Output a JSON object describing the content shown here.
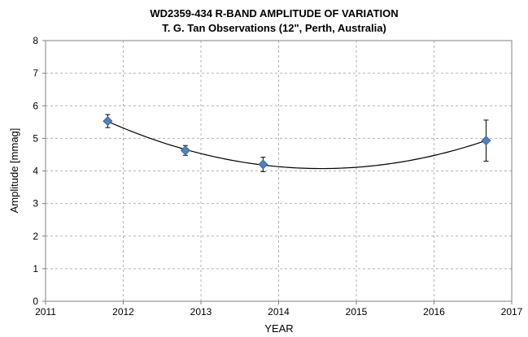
{
  "chart_data": {
    "type": "scatter",
    "title": "WD2359-434 R-BAND AMPLITUDE OF VARIATION",
    "subtitle": "T. G. Tan Observations (12\", Perth, Australia)",
    "xlabel": "YEAR",
    "ylabel": "Amplitude [mmag]",
    "xlim": [
      2011,
      2017
    ],
    "ylim": [
      0,
      8
    ],
    "x_ticks": [
      "2011",
      "2012",
      "2013",
      "2014",
      "2015",
      "2016",
      "2017"
    ],
    "y_ticks": [
      "0",
      "1",
      "2",
      "3",
      "4",
      "5",
      "6",
      "7",
      "8"
    ],
    "grid": true,
    "legend": "none",
    "marker": "diamond",
    "marker_color": "#4f81bd",
    "series": [
      {
        "points": [
          {
            "x": 2011.8,
            "y": 5.53,
            "err": 0.2
          },
          {
            "x": 2012.8,
            "y": 4.63,
            "err": 0.15
          },
          {
            "x": 2013.8,
            "y": 4.2,
            "err": 0.22
          },
          {
            "x": 2016.67,
            "y": 4.93,
            "err": 0.63
          }
        ]
      }
    ],
    "trendline": {
      "type": "polynomial",
      "order": 2
    }
  }
}
